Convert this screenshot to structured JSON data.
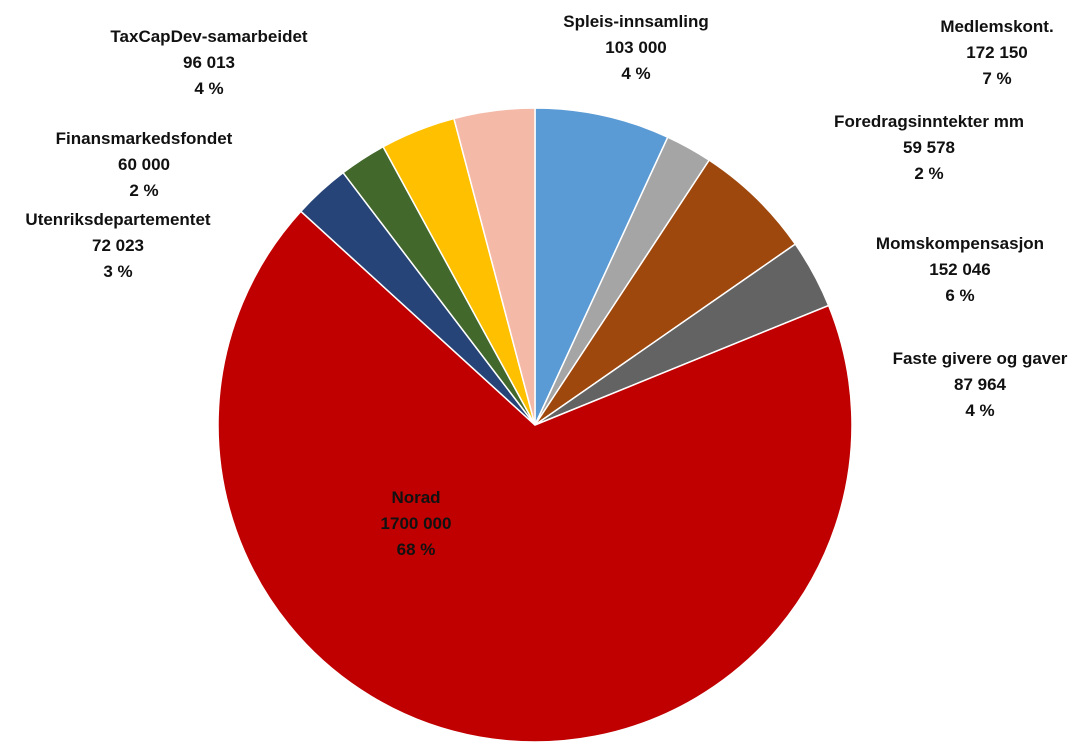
{
  "chart_data": {
    "type": "pie",
    "title": "",
    "slices": [
      {
        "name": "Medlemskont.",
        "value": "172 150",
        "numeric": 172150,
        "percent": "7 %",
        "color": "#5b9bd5"
      },
      {
        "name": "Foredragsinntekter mm",
        "value": "59 578",
        "numeric": 59578,
        "percent": "2 %",
        "color": "#a5a5a5"
      },
      {
        "name": "Momskompensasjon",
        "value": "152 046",
        "numeric": 152046,
        "percent": "6 %",
        "color": "#9e480e"
      },
      {
        "name": "Faste givere og gaver",
        "value": "87 964",
        "numeric": 87964,
        "percent": "4 %",
        "color": "#636363"
      },
      {
        "name": "Norad",
        "value": "1700 000",
        "numeric": 1700000,
        "percent": "68 %",
        "color": "#c00000"
      },
      {
        "name": "Utenriksdepartementet",
        "value": "72 023",
        "numeric": 72023,
        "percent": "3 %",
        "color": "#264478"
      },
      {
        "name": "Finansmarkedsfondet",
        "value": "60 000",
        "numeric": 60000,
        "percent": "2 %",
        "color": "#43682b"
      },
      {
        "name": "TaxCapDev-samarbeidet",
        "value": "96 013",
        "numeric": 96013,
        "percent": "4 %",
        "color": "#ffc000"
      },
      {
        "name": "Spleis-innsamling",
        "value": "103 000",
        "numeric": 103000,
        "percent": "4 %",
        "color": "#f4b9a7"
      }
    ]
  }
}
